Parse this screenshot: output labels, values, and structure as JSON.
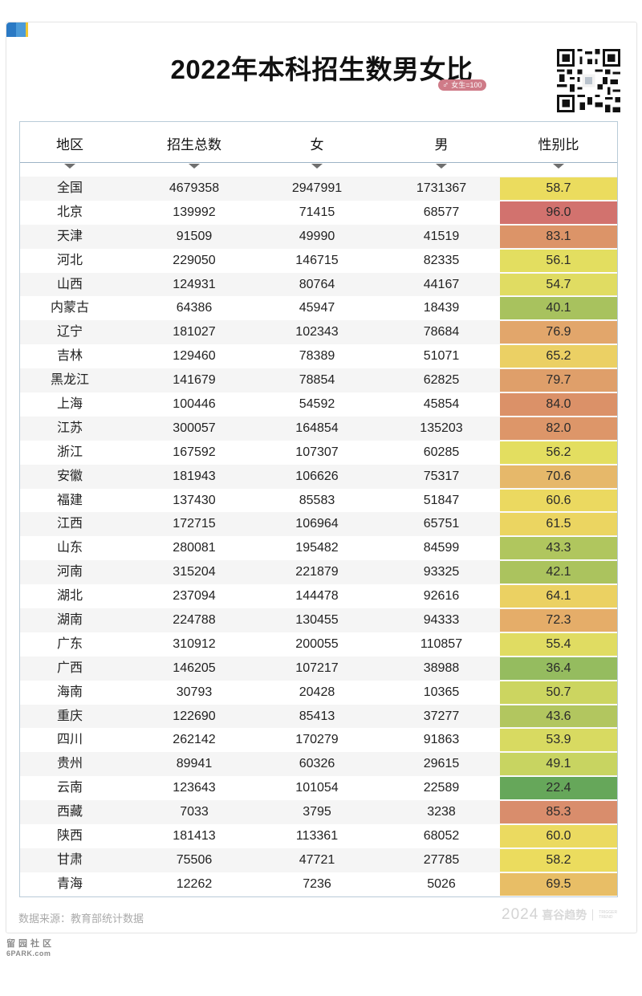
{
  "title": "2022年本科招生数男女比",
  "badge": {
    "icon": "♂",
    "text": "女生=100",
    "color": "#cf7b88"
  },
  "table": {
    "headers": [
      "地区",
      "招生总数",
      "女",
      "男",
      "性别比"
    ]
  },
  "footer": {
    "source": "数据来源：教育部统计数据",
    "brand_year": "2024",
    "brand_name": "喜谷趋势",
    "brand_en_1": "TRIGGER",
    "brand_en_2": "TREND"
  },
  "watermark": {
    "cn": "留园社区",
    "en": "6PARK.com"
  },
  "colors": {
    "corner_blue_dark": "#2a79c4",
    "corner_blue_light": "#4b9ad8",
    "corner_yellow": "#f0c832",
    "table_border": "#b9cbd8",
    "stripe": "#f5f5f5"
  },
  "chart_data": {
    "type": "table",
    "title": "2022年本科招生数男女比",
    "subtitle": "♂ 女生=100",
    "columns": [
      "地区",
      "招生总数",
      "女",
      "男",
      "性别比"
    ],
    "rows": [
      [
        "全国",
        "4679358",
        "2947991",
        "1731367",
        "58.7"
      ],
      [
        "北京",
        "139992",
        "71415",
        "68577",
        "96.0"
      ],
      [
        "天津",
        "91509",
        "49990",
        "41519",
        "83.1"
      ],
      [
        "河北",
        "229050",
        "146715",
        "82335",
        "56.1"
      ],
      [
        "山西",
        "124931",
        "80764",
        "44167",
        "54.7"
      ],
      [
        "内蒙古",
        "64386",
        "45947",
        "18439",
        "40.1"
      ],
      [
        "辽宁",
        "181027",
        "102343",
        "78684",
        "76.9"
      ],
      [
        "吉林",
        "129460",
        "78389",
        "51071",
        "65.2"
      ],
      [
        "黑龙江",
        "141679",
        "78854",
        "62825",
        "79.7"
      ],
      [
        "上海",
        "100446",
        "54592",
        "45854",
        "84.0"
      ],
      [
        "江苏",
        "300057",
        "164854",
        "135203",
        "82.0"
      ],
      [
        "浙江",
        "167592",
        "107307",
        "60285",
        "56.2"
      ],
      [
        "安徽",
        "181943",
        "106626",
        "75317",
        "70.6"
      ],
      [
        "福建",
        "137430",
        "85583",
        "51847",
        "60.6"
      ],
      [
        "江西",
        "172715",
        "106964",
        "65751",
        "61.5"
      ],
      [
        "山东",
        "280081",
        "195482",
        "84599",
        "43.3"
      ],
      [
        "河南",
        "315204",
        "221879",
        "93325",
        "42.1"
      ],
      [
        "湖北",
        "237094",
        "144478",
        "92616",
        "64.1"
      ],
      [
        "湖南",
        "224788",
        "130455",
        "94333",
        "72.3"
      ],
      [
        "广东",
        "310912",
        "200055",
        "110857",
        "55.4"
      ],
      [
        "广西",
        "146205",
        "107217",
        "38988",
        "36.4"
      ],
      [
        "海南",
        "30793",
        "20428",
        "10365",
        "50.7"
      ],
      [
        "重庆",
        "122690",
        "85413",
        "37277",
        "43.6"
      ],
      [
        "四川",
        "262142",
        "170279",
        "91863",
        "53.9"
      ],
      [
        "贵州",
        "89941",
        "60326",
        "29615",
        "49.1"
      ],
      [
        "云南",
        "123643",
        "101054",
        "22589",
        "22.4"
      ],
      [
        "西藏",
        "7033",
        "3795",
        "3238",
        "85.3"
      ],
      [
        "陕西",
        "181413",
        "113361",
        "68052",
        "60.0"
      ],
      [
        "甘肃",
        "75506",
        "47721",
        "27785",
        "58.2"
      ],
      [
        "青海",
        "12262",
        "7236",
        "5026",
        "69.5"
      ]
    ],
    "ratio_colors": {
      "全国": "#ebdc5e",
      "北京": "#d2726e",
      "天津": "#dc9468",
      "河北": "#e3de60",
      "山西": "#e0dc62",
      "内蒙古": "#a8c25e",
      "辽宁": "#e2a66b",
      "吉林": "#ebd064",
      "黑龙江": "#df9f6a",
      "上海": "#db9168",
      "江苏": "#dd9669",
      "浙江": "#e3de60",
      "安徽": "#e6b86a",
      "福建": "#ebd960",
      "江西": "#ebd561",
      "山东": "#b0c65e",
      "河南": "#abc35e",
      "湖北": "#ebd162",
      "湖南": "#e5ad69",
      "广东": "#e0dc62",
      "广西": "#95bc5f",
      "海南": "#ccd560",
      "重庆": "#b2c65f",
      "四川": "#d8da61",
      "贵州": "#c8d461",
      "云南": "#66a75a",
      "西藏": "#d98d6c",
      "陕西": "#ebda60",
      "甘肃": "#ebdc5e",
      "青海": "#e8be66"
    },
    "color_scale": {
      "low": "#66a75a",
      "mid": "#ebdc5e",
      "high": "#d2726e"
    }
  }
}
